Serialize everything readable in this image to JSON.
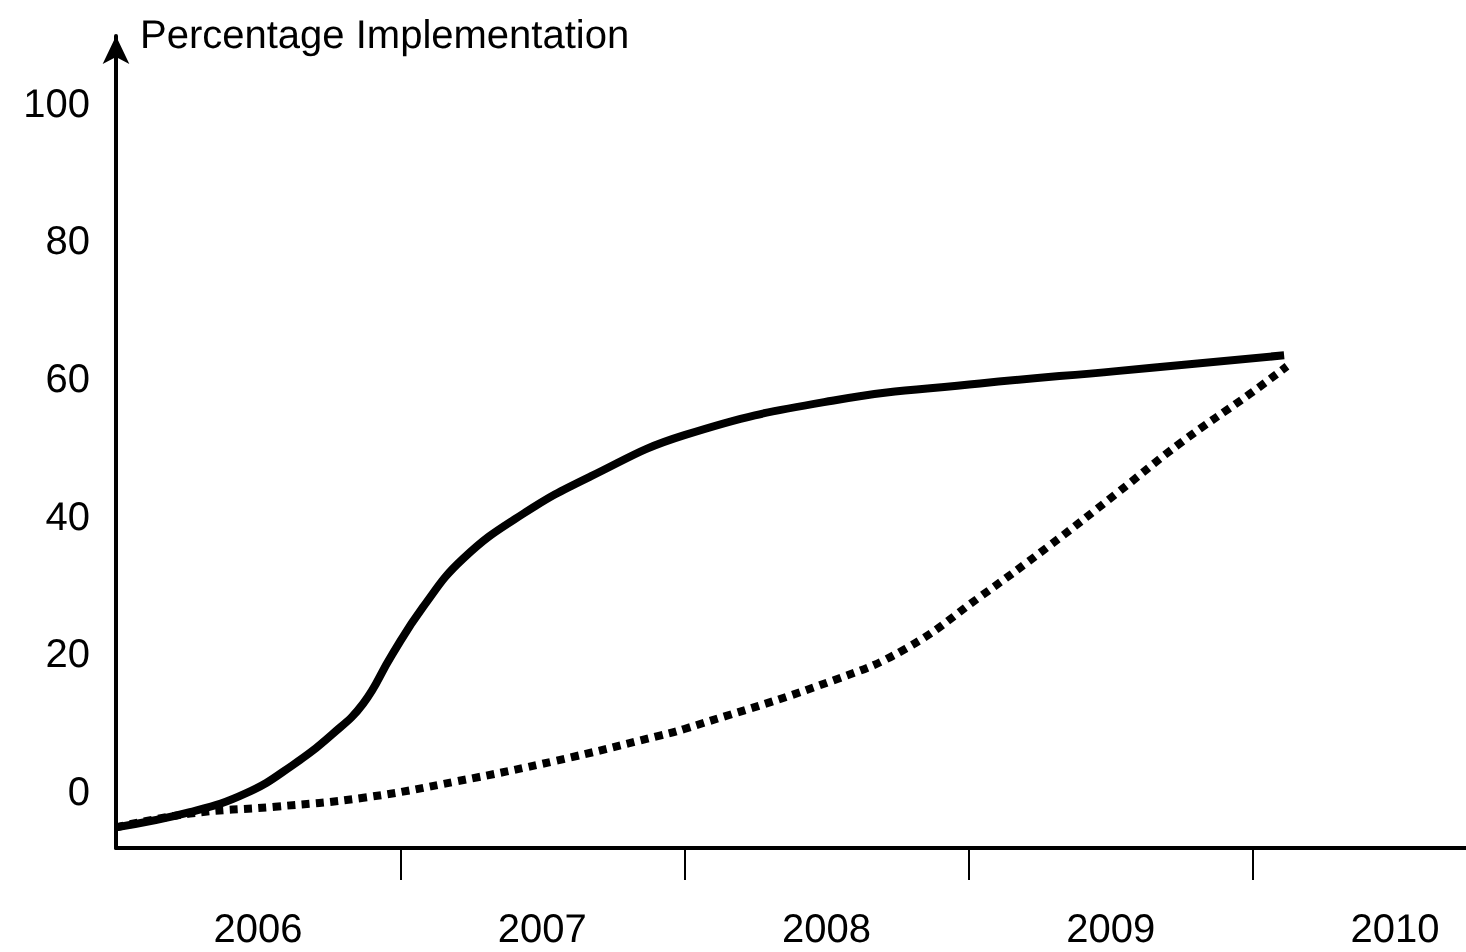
{
  "chart_data": {
    "type": "line",
    "ylabel": "Percentage Implementation",
    "series": [
      {
        "color": "#000000",
        "line_style": "solid",
        "x": [
          2006.0,
          2006.26,
          2006.46,
          2006.62,
          2006.76,
          2006.87,
          2006.97,
          2007.08,
          2007.22,
          2007.43,
          2007.67,
          2008.0,
          2008.52,
          2009.04,
          2009.52,
          2010.11
        ],
        "values": [
          -5,
          -2.8,
          0,
          4,
          8.5,
          13,
          20,
          27,
          34,
          40.5,
          46,
          52,
          57,
          59.5,
          61.3,
          63.6
        ]
      },
      {
        "color": "#000000",
        "line_style": "dotted",
        "x": [
          2006.0,
          2006.26,
          2006.56,
          2006.87,
          2007.2,
          2007.55,
          2007.91,
          2008.0,
          2008.52,
          2008.78,
          2009.04,
          2009.28,
          2009.52,
          2009.75,
          2009.99,
          2010.12
        ],
        "values": [
          -5,
          -3,
          -2,
          -0.7,
          1.7,
          4.7,
          8.3,
          9.3,
          16.3,
          21,
          28.5,
          35.8,
          43.5,
          51,
          58,
          62
        ]
      }
    ],
    "xlim": [
      2006,
      2010.75
    ],
    "xticks": [
      {
        "value": 2006.5,
        "label": "2006"
      },
      {
        "value": 2007,
        "label": null
      },
      {
        "value": 2007.5,
        "label": "2007"
      },
      {
        "value": 2008,
        "label": null
      },
      {
        "value": 2008.5,
        "label": "2008"
      },
      {
        "value": 2009,
        "label": null
      },
      {
        "value": 2009.5,
        "label": "2009"
      },
      {
        "value": 2010,
        "label": null
      },
      {
        "value": 2010.5,
        "label": "2010"
      }
    ],
    "ylim": [
      -8,
      110
    ],
    "yticks": [
      0,
      20,
      40,
      60,
      80,
      100
    ],
    "grid": false,
    "marker": "none"
  }
}
